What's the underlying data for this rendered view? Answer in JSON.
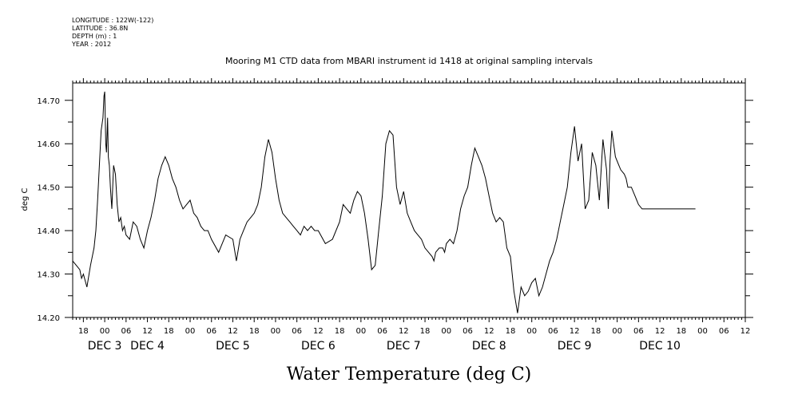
{
  "meta": {
    "longitude": "LONGITUDE : 122W(-122)",
    "latitude": "LATITUDE : 36.8N",
    "depth": "DEPTH (m) : 1",
    "year": "YEAR : 2012"
  },
  "chart_data": {
    "type": "line",
    "title": "Mooring M1 CTD data from MBARI instrument id 1418 at original sampling intervals",
    "xlabel": "Water Temperature (deg C)",
    "ylabel": "deg C",
    "ylim": [
      14.2,
      14.74
    ],
    "yticks": [
      14.2,
      14.3,
      14.4,
      14.5,
      14.6,
      14.7
    ],
    "ytick_labels": [
      "14.20",
      "14.30",
      "14.40",
      "14.50",
      "14.60",
      "14.70"
    ],
    "xlim": [
      -9,
      180
    ],
    "hour_ticks": [
      {
        "t": -6,
        "label": "18"
      },
      {
        "t": 0,
        "label": "00"
      },
      {
        "t": 6,
        "label": "06"
      },
      {
        "t": 12,
        "label": "12"
      },
      {
        "t": 18,
        "label": "18"
      },
      {
        "t": 24,
        "label": "00"
      },
      {
        "t": 30,
        "label": "06"
      },
      {
        "t": 36,
        "label": "12"
      },
      {
        "t": 42,
        "label": "18"
      },
      {
        "t": 48,
        "label": "00"
      },
      {
        "t": 54,
        "label": "06"
      },
      {
        "t": 60,
        "label": "12"
      },
      {
        "t": 66,
        "label": "18"
      },
      {
        "t": 72,
        "label": "00"
      },
      {
        "t": 78,
        "label": "06"
      },
      {
        "t": 84,
        "label": "12"
      },
      {
        "t": 90,
        "label": "18"
      },
      {
        "t": 96,
        "label": "00"
      },
      {
        "t": 102,
        "label": "06"
      },
      {
        "t": 108,
        "label": "12"
      },
      {
        "t": 114,
        "label": "18"
      },
      {
        "t": 120,
        "label": "00"
      },
      {
        "t": 126,
        "label": "06"
      },
      {
        "t": 132,
        "label": "12"
      },
      {
        "t": 138,
        "label": "18"
      },
      {
        "t": 144,
        "label": "00"
      },
      {
        "t": 150,
        "label": "06"
      },
      {
        "t": 156,
        "label": "12"
      },
      {
        "t": 162,
        "label": "18"
      },
      {
        "t": 168,
        "label": "00"
      },
      {
        "t": 174,
        "label": "06"
      },
      {
        "t": 180,
        "label": "12"
      }
    ],
    "day_labels": [
      {
        "t": 0,
        "label": "DEC  3"
      },
      {
        "t": 12,
        "label": "DEC  4"
      },
      {
        "t": 36,
        "label": "DEC  5"
      },
      {
        "t": 60,
        "label": "DEC  6"
      },
      {
        "t": 84,
        "label": "DEC  7"
      },
      {
        "t": 108,
        "label": "DEC  8"
      },
      {
        "t": 132,
        "label": "DEC  9"
      },
      {
        "t": 156,
        "label": "DEC 10"
      }
    ],
    "series": [
      {
        "x": [
          -9,
          -8,
          -7,
          -6.5,
          -6,
          -5,
          -4,
          -3,
          -2.5,
          -2,
          -1.5,
          -1,
          -0.5,
          -0.2,
          0,
          0.3,
          0.5,
          0.8,
          1,
          1.3,
          1.6,
          2,
          2.5,
          3,
          3.5,
          4,
          4.5,
          5,
          5.5,
          6,
          7,
          8,
          9,
          10,
          11,
          12,
          13,
          14,
          15,
          16,
          17,
          18,
          19,
          20,
          21,
          22,
          23,
          24,
          25,
          26,
          27,
          28,
          29,
          30,
          32,
          34,
          36,
          37,
          38,
          39,
          40,
          41,
          42,
          43,
          44,
          45,
          46,
          47,
          48,
          49,
          50,
          51,
          52,
          53,
          54,
          55,
          56,
          57,
          58,
          59,
          60,
          62,
          64,
          66,
          67,
          68,
          69,
          70,
          71,
          72,
          73,
          74,
          75,
          76,
          77,
          78,
          79,
          80,
          81,
          82,
          83,
          84,
          85,
          86,
          87,
          88,
          89,
          90,
          91,
          92,
          92.5,
          93,
          94,
          95,
          95.5,
          96,
          97,
          98,
          99,
          100,
          101,
          102,
          103,
          104,
          105,
          106,
          107,
          108,
          109,
          110,
          111,
          112,
          113,
          114,
          115,
          116,
          117,
          118,
          119,
          120,
          121,
          122,
          123,
          124,
          125,
          126,
          127,
          128,
          129,
          130,
          131,
          132,
          133,
          134,
          135,
          136,
          137,
          138,
          139,
          140,
          141,
          141.5,
          142,
          142.5,
          143,
          143.5,
          144,
          144.5,
          145,
          146,
          146.5,
          147,
          148,
          149,
          149.5,
          150,
          151,
          152,
          152.5,
          153,
          154,
          155,
          156,
          157,
          158,
          159,
          160,
          161,
          162,
          163,
          164,
          165,
          166
        ],
        "values": [
          14.33,
          14.32,
          14.31,
          14.29,
          14.3,
          14.27,
          14.32,
          14.36,
          14.4,
          14.47,
          14.55,
          14.63,
          14.66,
          14.71,
          14.72,
          14.6,
          14.58,
          14.66,
          14.57,
          14.55,
          14.5,
          14.45,
          14.55,
          14.53,
          14.46,
          14.42,
          14.43,
          14.4,
          14.41,
          14.39,
          14.38,
          14.42,
          14.41,
          14.38,
          14.36,
          14.4,
          14.43,
          14.47,
          14.52,
          14.55,
          14.57,
          14.55,
          14.52,
          14.5,
          14.47,
          14.45,
          14.46,
          14.47,
          14.44,
          14.43,
          14.41,
          14.4,
          14.4,
          14.38,
          14.35,
          14.39,
          14.38,
          14.33,
          14.38,
          14.4,
          14.42,
          14.43,
          14.44,
          14.46,
          14.5,
          14.57,
          14.61,
          14.58,
          14.52,
          14.47,
          14.44,
          14.43,
          14.42,
          14.41,
          14.4,
          14.39,
          14.41,
          14.4,
          14.41,
          14.4,
          14.4,
          14.37,
          14.38,
          14.42,
          14.46,
          14.45,
          14.44,
          14.47,
          14.49,
          14.48,
          14.44,
          14.38,
          14.31,
          14.32,
          14.4,
          14.48,
          14.6,
          14.63,
          14.62,
          14.5,
          14.46,
          14.49,
          14.44,
          14.42,
          14.4,
          14.39,
          14.38,
          14.36,
          14.35,
          14.34,
          14.33,
          14.35,
          14.36,
          14.36,
          14.35,
          14.37,
          14.38,
          14.37,
          14.4,
          14.45,
          14.48,
          14.5,
          14.55,
          14.59,
          14.57,
          14.55,
          14.52,
          14.48,
          14.44,
          14.42,
          14.43,
          14.42,
          14.36,
          14.34,
          14.26,
          14.21,
          14.27,
          14.25,
          14.26,
          14.28,
          14.29,
          14.25,
          14.27,
          14.3,
          14.33,
          14.35,
          14.38,
          14.42,
          14.46,
          14.5,
          14.58,
          14.64,
          14.56,
          14.6,
          14.45,
          14.47,
          14.58,
          14.55,
          14.47,
          14.61,
          14.54,
          14.45,
          14.56,
          14.63,
          14.6,
          14.57,
          14.56,
          14.55,
          14.54,
          14.53,
          14.52,
          14.5,
          14.5,
          14.48,
          14.47,
          14.46,
          14.45,
          14.45,
          14.45,
          14.45,
          14.45,
          14.45,
          14.45,
          14.45,
          14.45,
          14.45,
          14.45,
          14.45,
          14.45,
          14.45,
          14.45,
          14.45,
          14.45
        ]
      }
    ],
    "grid": false,
    "legend": "none"
  }
}
